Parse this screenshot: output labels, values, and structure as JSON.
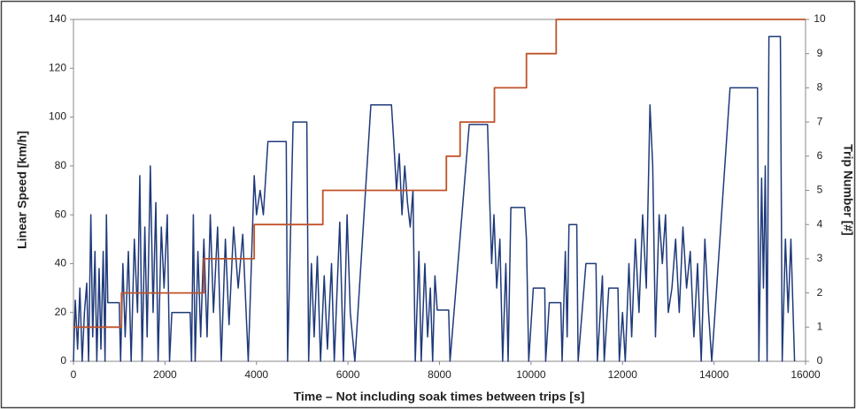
{
  "chart_data": {
    "type": "line",
    "xlabel": "Time – Not including soak times between trips [s]",
    "ylabel": "Linear Speed [km/h]",
    "y2label": "Trip Number [#]",
    "xlim": [
      0,
      16000
    ],
    "xticks": [
      0,
      2000,
      4000,
      6000,
      8000,
      10000,
      12000,
      14000,
      16000
    ],
    "ylim": [
      0,
      140
    ],
    "yticks": [
      0,
      20,
      40,
      60,
      80,
      100,
      120,
      140
    ],
    "y2lim": [
      0,
      10
    ],
    "y2ticks": [
      0,
      1,
      2,
      3,
      4,
      5,
      6,
      7,
      8,
      9,
      10
    ],
    "series": [
      {
        "color": "#1f3a7a",
        "x": [
          0,
          40,
          90,
          140,
          190,
          240,
          290,
          330,
          380,
          420,
          470,
          510,
          560,
          600,
          650,
          690,
          720,
          750,
          1000,
          1030,
          1080,
          1130,
          1200,
          1260,
          1330,
          1400,
          1450,
          1500,
          1560,
          1610,
          1680,
          1740,
          1800,
          1850,
          1920,
          1980,
          2050,
          2100,
          2150,
          2550,
          2580,
          2620,
          2660,
          2720,
          2780,
          2850,
          2920,
          2990,
          3060,
          3150,
          3230,
          3320,
          3400,
          3500,
          3600,
          3700,
          3820,
          3950,
          4000,
          4080,
          4150,
          4250,
          4650,
          4680,
          4800,
          5100,
          5140,
          5200,
          5260,
          5330,
          5400,
          5480,
          5550,
          5640,
          5700,
          5820,
          5900,
          5980,
          6050,
          6150,
          6500,
          6950,
          7000,
          7060,
          7120,
          7180,
          7240,
          7300,
          7360,
          7420,
          7470,
          7550,
          7600,
          7680,
          7740,
          7800,
          7850,
          7900,
          7950,
          8200,
          8230,
          8650,
          9050,
          9090,
          9140,
          9190,
          9250,
          9320,
          9380,
          9450,
          9500,
          9560,
          9860,
          9900,
          9950,
          10050,
          10300,
          10320,
          10400,
          10650,
          10680,
          10750,
          10790,
          10830,
          11000,
          11030,
          11200,
          11420,
          11450,
          11560,
          11600,
          11700,
          11900,
          11930,
          12000,
          12060,
          12140,
          12200,
          12280,
          12360,
          12440,
          12520,
          12600,
          12660,
          12720,
          12800,
          12870,
          12940,
          13000,
          13080,
          13160,
          13240,
          13320,
          13400,
          13480,
          13560,
          13640,
          13720,
          13800,
          13880,
          13950,
          14350,
          14950,
          14980,
          15040,
          15080,
          15120,
          15160,
          15200,
          15450,
          15490,
          15560,
          15620,
          15680,
          15760
        ],
        "values": [
          0,
          25,
          5,
          30,
          0,
          20,
          32,
          0,
          60,
          10,
          45,
          0,
          38,
          5,
          45,
          0,
          60,
          24,
          24,
          0,
          40,
          10,
          45,
          0,
          50,
          20,
          76,
          0,
          55,
          10,
          80,
          20,
          65,
          0,
          55,
          30,
          60,
          0,
          20,
          20,
          0,
          60,
          0,
          45,
          10,
          50,
          10,
          60,
          20,
          55,
          0,
          50,
          15,
          55,
          30,
          52,
          0,
          76,
          60,
          70,
          60,
          90,
          90,
          0,
          98,
          98,
          0,
          40,
          10,
          43,
          0,
          35,
          5,
          40,
          0,
          57,
          0,
          60,
          20,
          0,
          105,
          105,
          90,
          70,
          85,
          60,
          80,
          65,
          55,
          70,
          0,
          45,
          0,
          40,
          10,
          30,
          0,
          35,
          21,
          21,
          0,
          97,
          97,
          70,
          40,
          60,
          30,
          50,
          0,
          40,
          0,
          63,
          63,
          50,
          0,
          30,
          30,
          0,
          24,
          24,
          0,
          45,
          10,
          56,
          56,
          0,
          40,
          40,
          0,
          35,
          0,
          30,
          30,
          0,
          20,
          0,
          40,
          10,
          50,
          20,
          60,
          30,
          105,
          80,
          10,
          60,
          40,
          60,
          20,
          30,
          50,
          20,
          55,
          30,
          45,
          10,
          40,
          0,
          50,
          20,
          0,
          112,
          112,
          0,
          75,
          30,
          80,
          0,
          133,
          133,
          0,
          50,
          20,
          50,
          0
        ]
      },
      {
        "color": "#c0522a",
        "axis": "y2",
        "x": [
          0,
          1050,
          1050,
          2850,
          2850,
          3950,
          3950,
          5450,
          5450,
          8150,
          8150,
          8450,
          8450,
          9200,
          9200,
          9900,
          9900,
          10550,
          10550,
          16000
        ],
        "values": [
          1,
          1,
          2,
          2,
          3,
          3,
          4,
          4,
          5,
          5,
          6,
          6,
          7,
          7,
          8,
          8,
          9,
          9,
          10,
          10
        ]
      }
    ]
  }
}
